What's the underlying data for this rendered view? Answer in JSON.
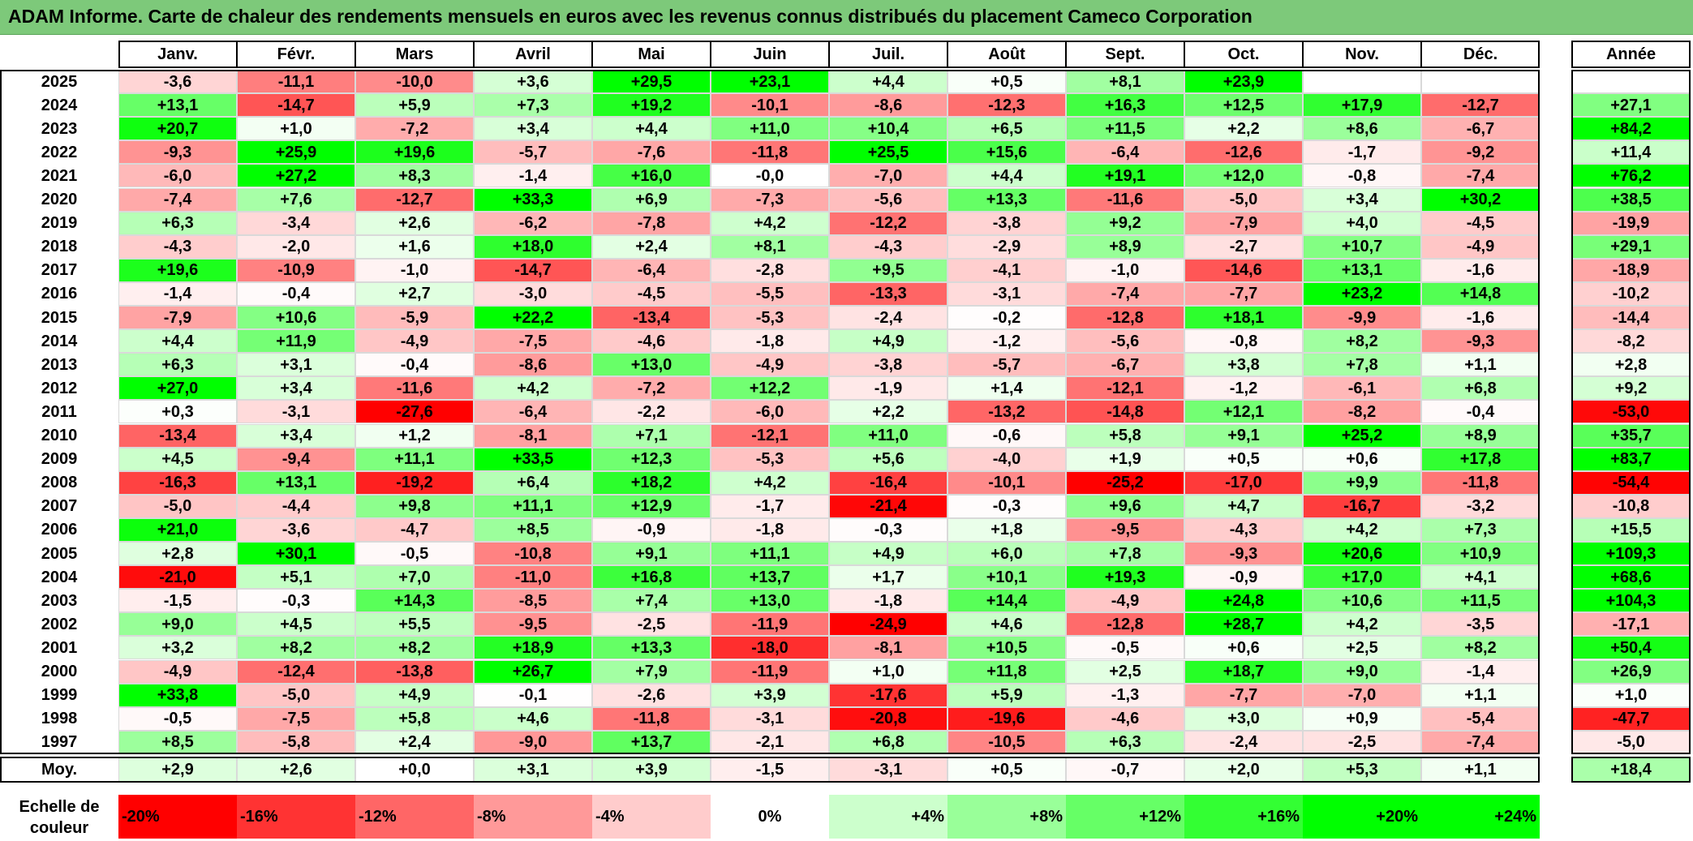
{
  "title": "ADAM Informe. Carte de chaleur des rendements mensuels en euros avec les revenus connus distribués du placement Cameco Corporation",
  "chart_data": {
    "type": "heatmap",
    "columns": [
      "Janv.",
      "Févr.",
      "Mars",
      "Avril",
      "Mai",
      "Juin",
      "Juil.",
      "Août",
      "Sept.",
      "Oct.",
      "Nov.",
      "Déc."
    ],
    "annual_header": "Année",
    "years": [
      "2025",
      "2024",
      "2023",
      "2022",
      "2021",
      "2020",
      "2019",
      "2018",
      "2017",
      "2016",
      "2015",
      "2014",
      "2013",
      "2012",
      "2011",
      "2010",
      "2009",
      "2008",
      "2007",
      "2006",
      "2005",
      "2004",
      "2003",
      "2002",
      "2001",
      "2000",
      "1999",
      "1998",
      "1997"
    ],
    "values": [
      [
        "-3,6",
        "-11,1",
        "-10,0",
        "+3,6",
        "+29,5",
        "+23,1",
        "+4,4",
        "+0,5",
        "+8,1",
        "+23,9",
        "",
        ""
      ],
      [
        "+13,1",
        "-14,7",
        "+5,9",
        "+7,3",
        "+19,2",
        "-10,1",
        "-8,6",
        "-12,3",
        "+16,3",
        "+12,5",
        "+17,9",
        "-12,7"
      ],
      [
        "+20,7",
        "+1,0",
        "-7,2",
        "+3,4",
        "+4,4",
        "+11,0",
        "+10,4",
        "+6,5",
        "+11,5",
        "+2,2",
        "+8,6",
        "-6,7"
      ],
      [
        "-9,3",
        "+25,9",
        "+19,6",
        "-5,7",
        "-7,6",
        "-11,8",
        "+25,5",
        "+15,6",
        "-6,4",
        "-12,6",
        "-1,7",
        "-9,2"
      ],
      [
        "-6,0",
        "+27,2",
        "+8,3",
        "-1,4",
        "+16,0",
        "-0,0",
        "-7,0",
        "+4,4",
        "+19,1",
        "+12,0",
        "-0,8",
        "-7,4"
      ],
      [
        "-7,4",
        "+7,6",
        "-12,7",
        "+33,3",
        "+6,9",
        "-7,3",
        "-5,6",
        "+13,3",
        "-11,6",
        "-5,0",
        "+3,4",
        "+30,2"
      ],
      [
        "+6,3",
        "-3,4",
        "+2,6",
        "-6,2",
        "-7,8",
        "+4,2",
        "-12,2",
        "-3,8",
        "+9,2",
        "-7,9",
        "+4,0",
        "-4,5"
      ],
      [
        "-4,3",
        "-2,0",
        "+1,6",
        "+18,0",
        "+2,4",
        "+8,1",
        "-4,3",
        "-2,9",
        "+8,9",
        "-2,7",
        "+10,7",
        "-4,9"
      ],
      [
        "+19,6",
        "-10,9",
        "-1,0",
        "-14,7",
        "-6,4",
        "-2,8",
        "+9,5",
        "-4,1",
        "-1,0",
        "-14,6",
        "+13,1",
        "-1,6"
      ],
      [
        "-1,4",
        "-0,4",
        "+2,7",
        "-3,0",
        "-4,5",
        "-5,5",
        "-13,3",
        "-3,1",
        "-7,4",
        "-7,7",
        "+23,2",
        "+14,8"
      ],
      [
        "-7,9",
        "+10,6",
        "-5,9",
        "+22,2",
        "-13,4",
        "-5,3",
        "-2,4",
        "-0,2",
        "-12,8",
        "+18,1",
        "-9,9",
        "-1,6"
      ],
      [
        "+4,4",
        "+11,9",
        "-4,9",
        "-7,5",
        "-4,6",
        "-1,8",
        "+4,9",
        "-1,2",
        "-5,6",
        "-0,8",
        "+8,2",
        "-9,3"
      ],
      [
        "+6,3",
        "+3,1",
        "-0,4",
        "-8,6",
        "+13,0",
        "-4,9",
        "-3,8",
        "-5,7",
        "-6,7",
        "+3,8",
        "+7,8",
        "+1,1"
      ],
      [
        "+27,0",
        "+3,4",
        "-11,6",
        "+4,2",
        "-7,2",
        "+12,2",
        "-1,9",
        "+1,4",
        "-12,1",
        "-1,2",
        "-6,1",
        "+6,8"
      ],
      [
        "+0,3",
        "-3,1",
        "-27,6",
        "-6,4",
        "-2,2",
        "-6,0",
        "+2,2",
        "-13,2",
        "-14,8",
        "+12,1",
        "-8,2",
        "-0,4"
      ],
      [
        "-13,4",
        "+3,4",
        "+1,2",
        "-8,1",
        "+7,1",
        "-12,1",
        "+11,0",
        "-0,6",
        "+5,8",
        "+9,1",
        "+25,2",
        "+8,9"
      ],
      [
        "+4,5",
        "-9,4",
        "+11,1",
        "+33,5",
        "+12,3",
        "-5,3",
        "+5,6",
        "-4,0",
        "+1,9",
        "+0,5",
        "+0,6",
        "+17,8"
      ],
      [
        "-16,3",
        "+13,1",
        "-19,2",
        "+6,4",
        "+18,2",
        "+4,2",
        "-16,4",
        "-10,1",
        "-25,2",
        "-17,0",
        "+9,9",
        "-11,8"
      ],
      [
        "-5,0",
        "-4,4",
        "+9,8",
        "+11,1",
        "+12,9",
        "-1,7",
        "-21,4",
        "-0,3",
        "+9,6",
        "+4,7",
        "-16,7",
        "-3,2"
      ],
      [
        "+21,0",
        "-3,6",
        "-4,7",
        "+8,5",
        "-0,9",
        "-1,8",
        "-0,3",
        "+1,8",
        "-9,5",
        "-4,3",
        "+4,2",
        "+7,3"
      ],
      [
        "+2,8",
        "+30,1",
        "-0,5",
        "-10,8",
        "+9,1",
        "+11,1",
        "+4,9",
        "+6,0",
        "+7,8",
        "-9,3",
        "+20,6",
        "+10,9"
      ],
      [
        "-21,0",
        "+5,1",
        "+7,0",
        "-11,0",
        "+16,8",
        "+13,7",
        "+1,7",
        "+10,1",
        "+19,3",
        "-0,9",
        "+17,0",
        "+4,1"
      ],
      [
        "-1,5",
        "-0,3",
        "+14,3",
        "-8,5",
        "+7,4",
        "+13,0",
        "-1,8",
        "+14,4",
        "-4,9",
        "+24,8",
        "+10,6",
        "+11,5"
      ],
      [
        "+9,0",
        "+4,5",
        "+5,5",
        "-9,5",
        "-2,5",
        "-11,9",
        "-24,9",
        "+4,6",
        "-12,8",
        "+28,7",
        "+4,2",
        "-3,5"
      ],
      [
        "+3,2",
        "+8,2",
        "+8,2",
        "+18,9",
        "+13,3",
        "-18,0",
        "-8,1",
        "+10,5",
        "-0,5",
        "+0,6",
        "+2,5",
        "+8,2"
      ],
      [
        "-4,9",
        "-12,4",
        "-13,8",
        "+26,7",
        "+7,9",
        "-11,9",
        "+1,0",
        "+11,8",
        "+2,5",
        "+18,7",
        "+9,0",
        "-1,4"
      ],
      [
        "+33,8",
        "-5,0",
        "+4,9",
        "-0,1",
        "-2,6",
        "+3,9",
        "-17,6",
        "+5,9",
        "-1,3",
        "-7,7",
        "-7,0",
        "+1,1"
      ],
      [
        "-0,5",
        "-7,5",
        "+5,8",
        "+4,6",
        "-11,8",
        "-3,1",
        "-20,8",
        "-19,6",
        "-4,6",
        "+3,0",
        "+0,9",
        "-5,4"
      ],
      [
        "+8,5",
        "-5,8",
        "+2,4",
        "-9,0",
        "+13,7",
        "-2,1",
        "+6,8",
        "-10,5",
        "+6,3",
        "-2,4",
        "-2,5",
        "-7,4"
      ]
    ],
    "annual": [
      "",
      "+27,1",
      "+84,2",
      "+11,4",
      "+76,2",
      "+38,5",
      "-19,9",
      "+29,1",
      "-18,9",
      "-10,2",
      "-14,4",
      "-8,2",
      "+2,8",
      "+9,2",
      "-53,0",
      "+35,7",
      "+83,7",
      "-54,4",
      "-10,8",
      "+15,5",
      "+109,3",
      "+68,6",
      "+104,3",
      "-17,1",
      "+50,4",
      "+26,9",
      "+1,0",
      "-47,7",
      "-5,0"
    ],
    "avg_label": "Moy.",
    "averages": [
      "+2,9",
      "+2,6",
      "+0,0",
      "+3,1",
      "+3,9",
      "-1,5",
      "-3,1",
      "+0,5",
      "-0,7",
      "+2,0",
      "+5,3",
      "+1,1"
    ],
    "avg_annual": "+18,4",
    "scale_label": "Echelle de couleur",
    "scale_steps": [
      {
        "label": "-20%",
        "value": -20,
        "align": "left"
      },
      {
        "label": "-16%",
        "value": -16,
        "align": "left"
      },
      {
        "label": "-12%",
        "value": -12,
        "align": "left"
      },
      {
        "label": "-8%",
        "value": -8,
        "align": "left"
      },
      {
        "label": "-4%",
        "value": -4,
        "align": "left"
      },
      {
        "label": "0%",
        "value": 0,
        "align": "center"
      },
      {
        "label": "+4%",
        "value": 4,
        "align": "right"
      },
      {
        "label": "+8%",
        "value": 8,
        "align": "right"
      },
      {
        "label": "+12%",
        "value": 12,
        "align": "right"
      },
      {
        "label": "+16%",
        "value": 16,
        "align": "right"
      },
      {
        "label": "+20%",
        "value": 20,
        "align": "right"
      },
      {
        "label": "+24%",
        "value": 24,
        "align": "right"
      }
    ],
    "colors": {
      "negative_max": "#ff0000",
      "neutral": "#ffffff",
      "positive_max": "#00ff00"
    }
  }
}
